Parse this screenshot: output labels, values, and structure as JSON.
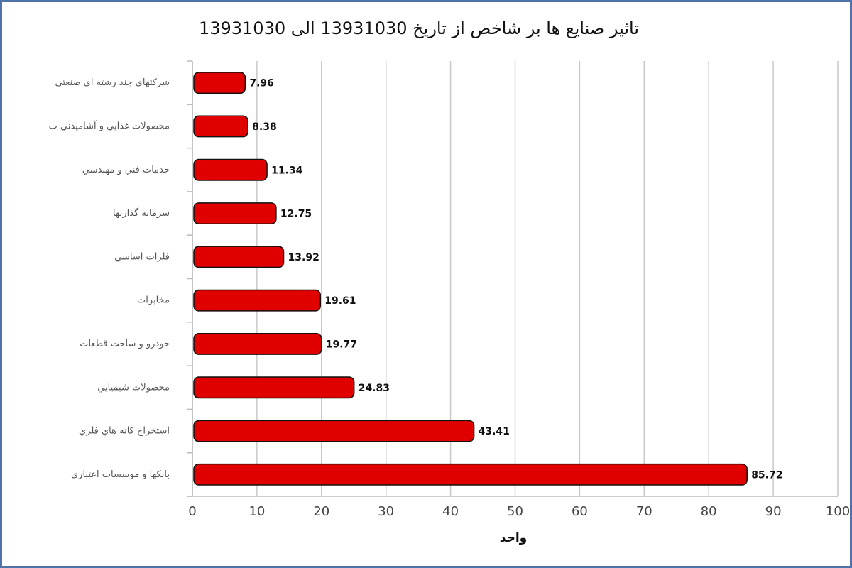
{
  "chart_data": {
    "type": "bar",
    "orientation": "horizontal",
    "title": "تاثیر صنایع ها بر شاخص از تاریخ 13931030 الی 13931030",
    "x_label": "واحد",
    "categories": [
      "شرکتهاي چند رشته اي صنعتي",
      "محصولات غذايي و آشاميدني ب",
      "خدمات فني و مهندسي",
      "سرمايه گذاريها",
      "فلزات اساسي",
      "مخابرات",
      "خودرو و ساخت قطعات",
      "محصولات شيميايي",
      "استخراج کانه هاي فلزي",
      "بانکها و موسسات اعتباري"
    ],
    "values": [
      7.96,
      8.38,
      11.34,
      12.75,
      13.92,
      19.61,
      19.77,
      24.83,
      43.41,
      85.72
    ],
    "color": "#e00000",
    "xlim": [
      0,
      100
    ],
    "xticks": [
      0,
      10,
      20,
      30,
      40,
      50,
      60,
      70,
      80,
      90,
      100
    ],
    "grid": true
  }
}
